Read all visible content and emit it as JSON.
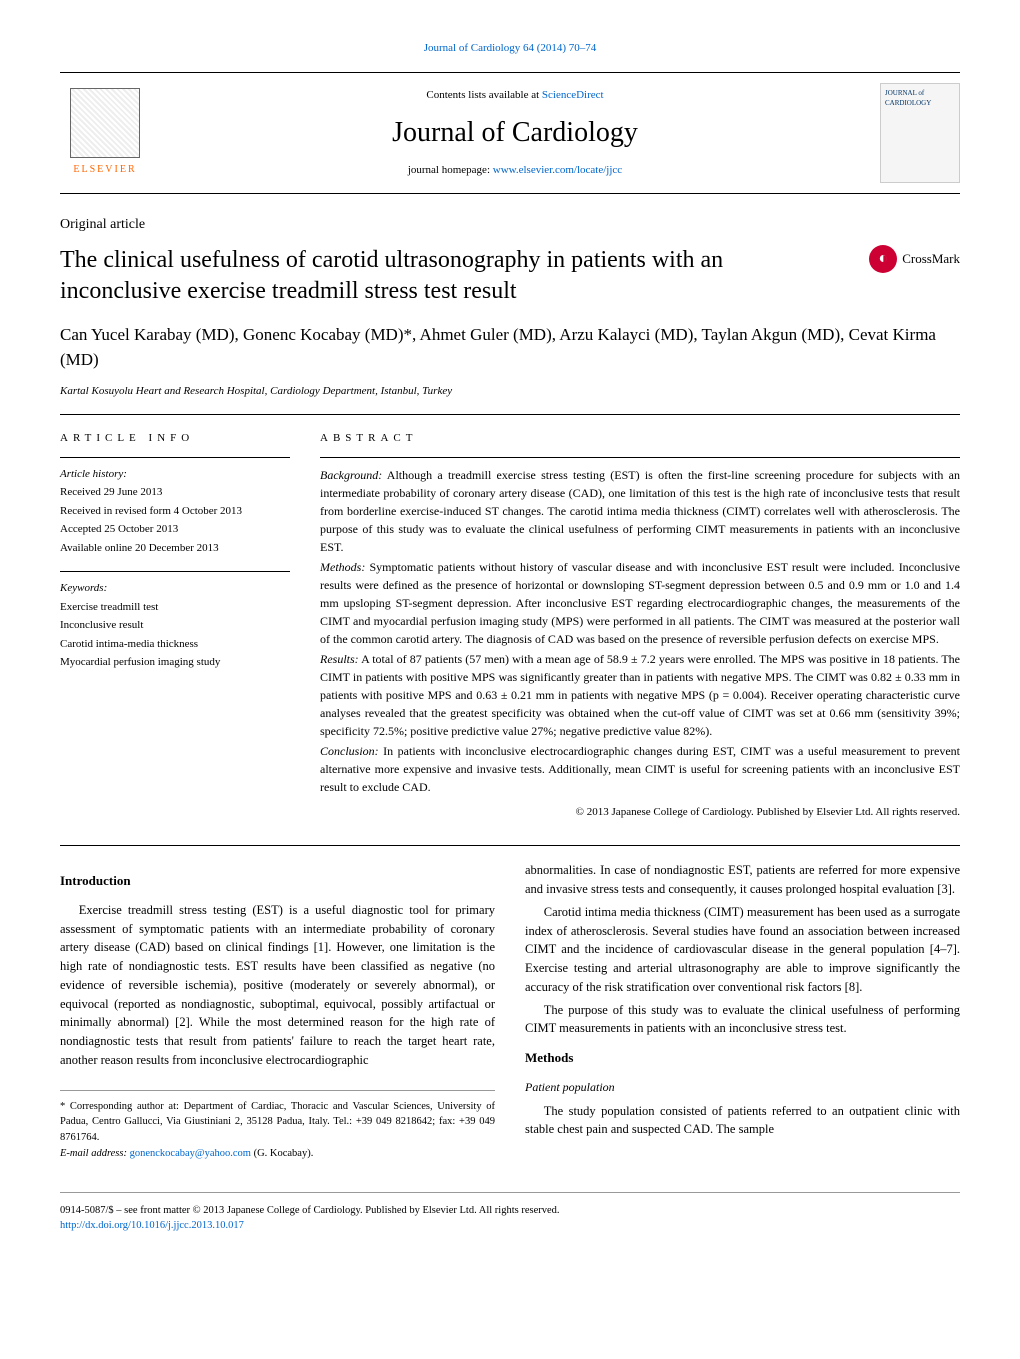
{
  "header": {
    "citation": "Journal of Cardiology 64 (2014) 70–74",
    "contents_prefix": "Contents lists available at ",
    "contents_link": "ScienceDirect",
    "journal_name": "Journal of Cardiology",
    "homepage_prefix": "journal homepage: ",
    "homepage_url": "www.elsevier.com/locate/jjcc",
    "publisher": "ELSEVIER",
    "cover_label": "JOURNAL of CARDIOLOGY"
  },
  "article": {
    "type": "Original article",
    "title": "The clinical usefulness of carotid ultrasonography in patients with an inconclusive exercise treadmill stress test result",
    "crossmark_label": "CrossMark",
    "authors_html": "Can Yucel Karabay (MD), Gonenc Kocabay (MD)*, Ahmet Guler (MD), Arzu Kalayci (MD), Taylan Akgun (MD), Cevat Kirma (MD)",
    "affiliation": "Kartal Kosuyolu Heart and Research Hospital, Cardiology Department, Istanbul, Turkey"
  },
  "info": {
    "heading": "ARTICLE INFO",
    "history_label": "Article history:",
    "received": "Received 29 June 2013",
    "revised": "Received in revised form 4 October 2013",
    "accepted": "Accepted 25 October 2013",
    "online": "Available online 20 December 2013",
    "keywords_label": "Keywords:",
    "keywords": [
      "Exercise treadmill test",
      "Inconclusive result",
      "Carotid intima-media thickness",
      "Myocardial perfusion imaging study"
    ]
  },
  "abstract": {
    "heading": "ABSTRACT",
    "background_label": "Background:",
    "background": " Although a treadmill exercise stress testing (EST) is often the first-line screening procedure for subjects with an intermediate probability of coronary artery disease (CAD), one limitation of this test is the high rate of inconclusive tests that result from borderline exercise-induced ST changes. The carotid intima media thickness (CIMT) correlates well with atherosclerosis. The purpose of this study was to evaluate the clinical usefulness of performing CIMT measurements in patients with an inconclusive EST.",
    "methods_label": "Methods:",
    "methods": " Symptomatic patients without history of vascular disease and with inconclusive EST result were included. Inconclusive results were defined as the presence of horizontal or downsloping ST-segment depression between 0.5 and 0.9 mm or 1.0 and 1.4 mm upsloping ST-segment depression. After inconclusive EST regarding electrocardiographic changes, the measurements of the CIMT and myocardial perfusion imaging study (MPS) were performed in all patients. The CIMT was measured at the posterior wall of the common carotid artery. The diagnosis of CAD was based on the presence of reversible perfusion defects on exercise MPS.",
    "results_label": "Results:",
    "results": " A total of 87 patients (57 men) with a mean age of 58.9 ± 7.2 years were enrolled. The MPS was positive in 18 patients. The CIMT in patients with positive MPS was significantly greater than in patients with negative MPS. The CIMT was 0.82 ± 0.33 mm in patients with positive MPS and 0.63 ± 0.21 mm in patients with negative MPS (p = 0.004). Receiver operating characteristic curve analyses revealed that the greatest specificity was obtained when the cut-off value of CIMT was set at 0.66 mm (sensitivity 39%; specificity 72.5%; positive predictive value 27%; negative predictive value 82%).",
    "conclusion_label": "Conclusion:",
    "conclusion": " In patients with inconclusive electrocardiographic changes during EST, CIMT was a useful measurement to prevent alternative more expensive and invasive tests. Additionally, mean CIMT is useful for screening patients with an inconclusive EST result to exclude CAD.",
    "copyright": "© 2013 Japanese College of Cardiology. Published by Elsevier Ltd. All rights reserved."
  },
  "body": {
    "intro_heading": "Introduction",
    "intro_p1": "Exercise treadmill stress testing (EST) is a useful diagnostic tool for primary assessment of symptomatic patients with an intermediate probability of coronary artery disease (CAD) based on clinical findings [1]. However, one limitation is the high rate of nondiagnostic tests. EST results have been classified as negative (no evidence of reversible ischemia), positive (moderately or severely abnormal), or equivocal (reported as nondiagnostic, suboptimal, equivocal, possibly artifactual or minimally abnormal) [2]. While the most determined reason for the high rate of nondiagnostic tests that result from patients' failure to reach the target heart rate, another reason results from inconclusive electrocardiographic",
    "intro_p2": "abnormalities. In case of nondiagnostic EST, patients are referred for more expensive and invasive stress tests and consequently, it causes prolonged hospital evaluation [3].",
    "intro_p3": "Carotid intima media thickness (CIMT) measurement has been used as a surrogate index of atherosclerosis. Several studies have found an association between increased CIMT and the incidence of cardiovascular disease in the general population [4–7]. Exercise testing and arterial ultrasonography are able to improve significantly the accuracy of the risk stratification over conventional risk factors [8].",
    "intro_p4": "The purpose of this study was to evaluate the clinical usefulness of performing CIMT measurements in patients with an inconclusive stress test.",
    "methods_heading": "Methods",
    "patient_heading": "Patient population",
    "methods_p1": "The study population consisted of patients referred to an outpatient clinic with stable chest pain and suspected CAD. The sample"
  },
  "corresp": {
    "text": "* Corresponding author at: Department of Cardiac, Thoracic and Vascular Sciences, University of Padua, Centro Gallucci, Via Giustiniani 2, 35128 Padua, Italy. Tel.: +39 049 8218642; fax: +39 049 8761764.",
    "email_label": "E-mail address: ",
    "email": "gonenckocabay@yahoo.com",
    "email_suffix": " (G. Kocabay)."
  },
  "footer": {
    "line1": "0914-5087/$ – see front matter © 2013 Japanese College of Cardiology. Published by Elsevier Ltd. All rights reserved.",
    "doi": "http://dx.doi.org/10.1016/j.jjcc.2013.10.017"
  },
  "colors": {
    "link": "#0066cc",
    "elsevier_orange": "#ff6600",
    "crossmark_red": "#cc0033"
  }
}
